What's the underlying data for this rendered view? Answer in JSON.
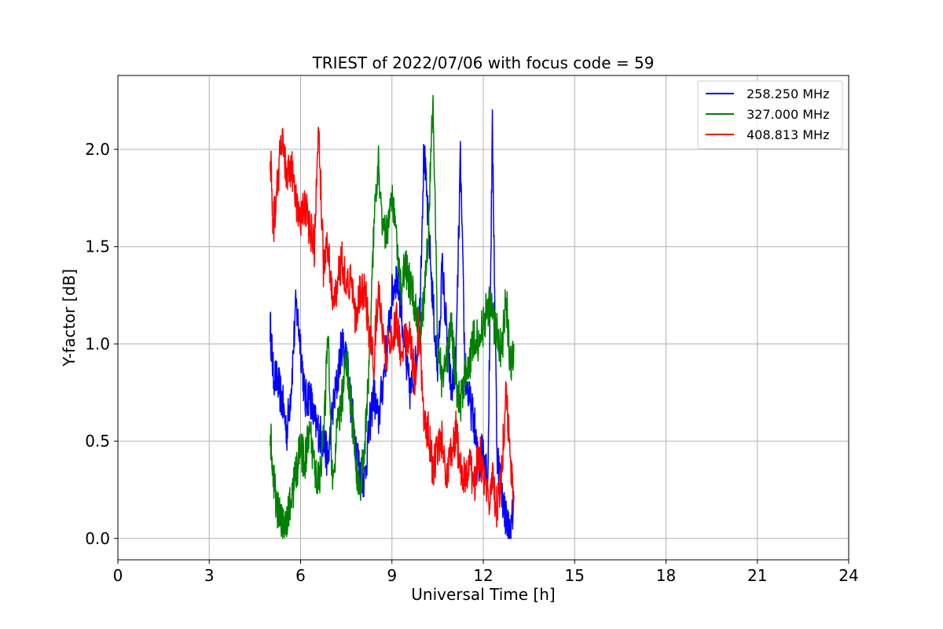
{
  "chart_data": {
    "type": "line",
    "title": "TRIEST of 2022/07/06 with focus code = 59",
    "xlabel": "Universal Time [h]",
    "ylabel": "Y-factor [dB]",
    "xlim": [
      0,
      24
    ],
    "ylim": [
      -0.11,
      2.38
    ],
    "x_ticks": [
      0,
      3,
      6,
      9,
      12,
      15,
      18,
      21,
      24
    ],
    "y_ticks": [
      0.0,
      0.5,
      1.0,
      1.5,
      2.0
    ],
    "x_tick_labels": [
      "0",
      "3",
      "6",
      "9",
      "12",
      "15",
      "18",
      "21",
      "24"
    ],
    "y_tick_labels": [
      "0.0",
      "0.5",
      "1.0",
      "1.5",
      "2.0"
    ],
    "grid": true,
    "legend_position": "top-right",
    "series": [
      {
        "name": "258.250 MHz",
        "color": "#0000ff",
        "x": [
          5.0,
          5.1,
          5.25,
          5.4,
          5.55,
          5.7,
          5.85,
          6.0,
          6.15,
          6.3,
          6.45,
          6.6,
          6.75,
          6.9,
          7.05,
          7.2,
          7.35,
          7.5,
          7.65,
          7.8,
          7.95,
          8.1,
          8.25,
          8.4,
          8.55,
          8.7,
          8.85,
          9.0,
          9.15,
          9.3,
          9.45,
          9.6,
          9.75,
          9.9,
          10.05,
          10.2,
          10.35,
          10.5,
          10.65,
          10.8,
          10.95,
          11.1,
          11.25,
          11.4,
          11.55,
          11.7,
          11.85,
          12.0,
          12.15,
          12.3,
          12.45,
          12.6,
          12.75,
          12.9,
          13.0
        ],
        "values": [
          1.1,
          0.85,
          0.8,
          0.7,
          0.55,
          0.8,
          1.2,
          1.0,
          0.7,
          0.75,
          0.6,
          0.55,
          0.5,
          0.4,
          0.65,
          0.8,
          1.0,
          0.95,
          0.7,
          0.5,
          0.35,
          0.3,
          0.55,
          0.75,
          0.6,
          0.8,
          1.0,
          1.25,
          1.35,
          1.2,
          0.9,
          0.75,
          0.85,
          1.1,
          2.0,
          1.6,
          1.2,
          0.85,
          1.4,
          1.05,
          0.75,
          0.9,
          1.95,
          0.85,
          0.7,
          0.6,
          0.35,
          0.5,
          0.3,
          2.1,
          0.45,
          0.25,
          0.1,
          0.0,
          0.2
        ]
      },
      {
        "name": "327.000 MHz",
        "color": "#008000",
        "x": [
          5.0,
          5.1,
          5.25,
          5.4,
          5.55,
          5.7,
          5.85,
          6.0,
          6.15,
          6.3,
          6.45,
          6.6,
          6.75,
          6.9,
          7.05,
          7.2,
          7.35,
          7.5,
          7.65,
          7.8,
          7.95,
          8.1,
          8.25,
          8.4,
          8.55,
          8.7,
          8.85,
          9.0,
          9.15,
          9.3,
          9.45,
          9.6,
          9.75,
          9.9,
          10.05,
          10.2,
          10.35,
          10.5,
          10.65,
          10.8,
          10.95,
          11.1,
          11.25,
          11.4,
          11.55,
          11.7,
          11.85,
          12.0,
          12.15,
          12.3,
          12.45,
          12.6,
          12.75,
          12.9,
          13.0
        ],
        "values": [
          0.55,
          0.3,
          0.15,
          0.05,
          0.1,
          0.2,
          0.35,
          0.45,
          0.4,
          0.55,
          0.35,
          0.3,
          0.5,
          1.05,
          0.25,
          0.55,
          0.7,
          0.95,
          0.7,
          0.4,
          0.25,
          0.45,
          0.9,
          1.6,
          1.95,
          1.6,
          1.55,
          1.8,
          1.55,
          1.3,
          1.4,
          1.3,
          1.2,
          1.05,
          1.2,
          1.6,
          2.25,
          1.0,
          0.8,
          0.9,
          1.1,
          0.8,
          0.7,
          0.85,
          0.9,
          1.05,
          1.0,
          1.1,
          1.2,
          1.15,
          1.05,
          0.95,
          1.25,
          0.85,
          1.0
        ]
      },
      {
        "name": "408.813 MHz",
        "color": "#ff0000",
        "x": [
          5.0,
          5.1,
          5.25,
          5.4,
          5.55,
          5.7,
          5.85,
          6.0,
          6.15,
          6.3,
          6.45,
          6.6,
          6.75,
          6.9,
          7.05,
          7.2,
          7.35,
          7.5,
          7.65,
          7.8,
          7.95,
          8.1,
          8.25,
          8.4,
          8.55,
          8.7,
          8.85,
          9.0,
          9.15,
          9.3,
          9.45,
          9.6,
          9.75,
          9.9,
          10.05,
          10.2,
          10.35,
          10.5,
          10.65,
          10.8,
          10.95,
          11.1,
          11.25,
          11.4,
          11.55,
          11.7,
          11.85,
          12.0,
          12.15,
          12.3,
          12.45,
          12.6,
          12.75,
          12.9,
          13.0
        ],
        "values": [
          2.0,
          1.6,
          1.85,
          2.05,
          1.85,
          1.9,
          1.75,
          1.65,
          1.7,
          1.6,
          1.5,
          2.1,
          1.4,
          1.5,
          1.2,
          1.3,
          1.45,
          1.3,
          1.35,
          1.1,
          1.25,
          1.3,
          1.05,
          0.9,
          1.3,
          1.0,
          0.95,
          1.0,
          1.15,
          0.95,
          1.0,
          1.05,
          0.8,
          1.1,
          0.6,
          0.55,
          0.35,
          0.45,
          0.5,
          0.3,
          0.45,
          0.55,
          0.35,
          0.3,
          0.4,
          0.25,
          0.45,
          0.35,
          0.2,
          0.3,
          0.15,
          0.35,
          0.75,
          0.4,
          0.2
        ]
      }
    ]
  }
}
